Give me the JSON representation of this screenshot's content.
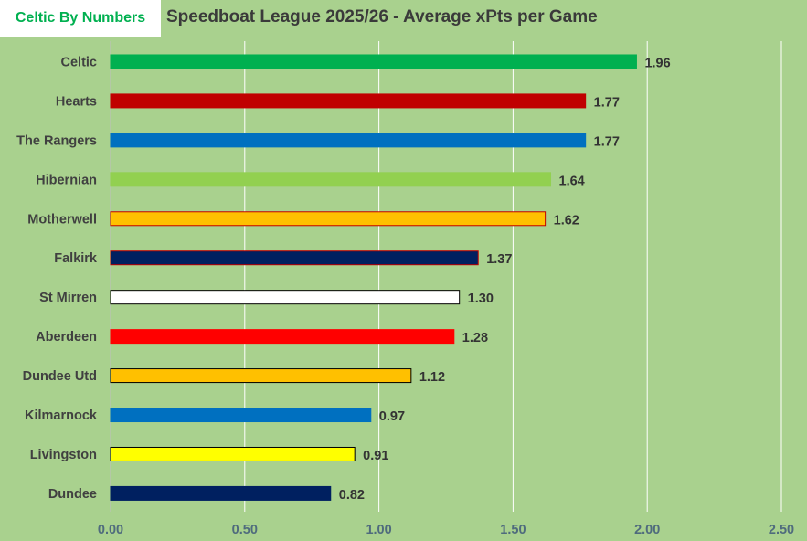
{
  "brand": {
    "label": "Celtic By Numbers",
    "color": "#00b050"
  },
  "chart_data": {
    "type": "bar",
    "orientation": "horizontal",
    "title": "Speedboat League 2025/26 - Average xPts per Game",
    "categories": [
      "Celtic",
      "Hearts",
      "The Rangers",
      "Hibernian",
      "Motherwell",
      "Falkirk",
      "St Mirren",
      "Aberdeen",
      "Dundee Utd",
      "Kilmarnock",
      "Livingston",
      "Dundee"
    ],
    "values": [
      1.96,
      1.77,
      1.77,
      1.64,
      1.62,
      1.37,
      1.3,
      1.28,
      1.12,
      0.97,
      0.91,
      0.82
    ],
    "value_labels": [
      "1.96",
      "1.77",
      "1.77",
      "1.64",
      "1.62",
      "1.37",
      "1.30",
      "1.28",
      "1.12",
      "0.97",
      "0.91",
      "0.82"
    ],
    "colors": [
      "#00b050",
      "#c00000",
      "#0070c0",
      "#92d050",
      "#ffc000",
      "#002060",
      "#ffffff",
      "#ff0000",
      "#ffc000",
      "#0070c0",
      "#ffff00",
      "#002060"
    ],
    "outlines": [
      "#00b050",
      "#c00000",
      "#0070c0",
      "#92d050",
      "#c00000",
      "#c00000",
      "#000000",
      "#ff0000",
      "#000000",
      "#0070c0",
      "#000000",
      "#002060"
    ],
    "xlim": [
      0,
      2.5
    ],
    "xticks": [
      "0.00",
      "0.50",
      "1.00",
      "1.50",
      "2.00",
      "2.50"
    ],
    "grid": "vertical",
    "background": "#a9d18e"
  }
}
